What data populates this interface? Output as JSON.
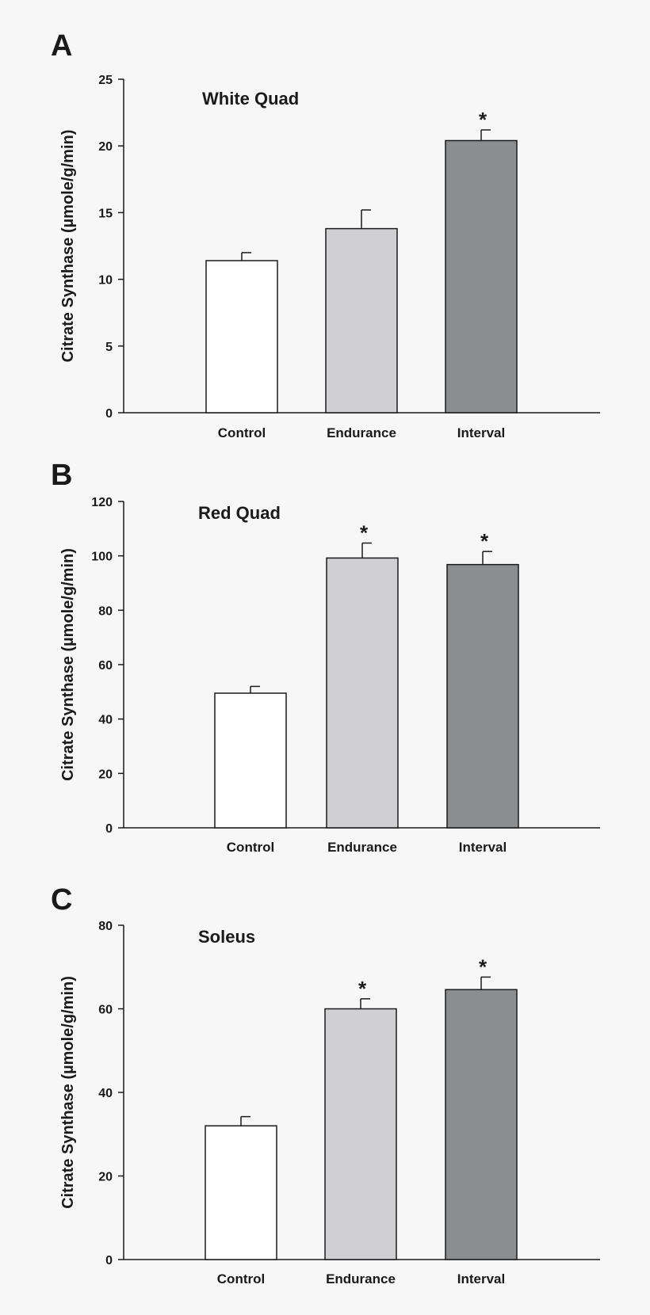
{
  "chart_data": [
    {
      "type": "bar",
      "panel": "A",
      "title": "White Quad",
      "ylabel": "Citrate Synthase (µmole/g/min)",
      "categories": [
        "Control",
        "Endurance",
        "Interval"
      ],
      "values": [
        11.4,
        13.8,
        20.4
      ],
      "errors": [
        0.6,
        1.4,
        0.8
      ],
      "significant": [
        "",
        "",
        "*"
      ],
      "colors": [
        "#ffffff",
        "#d0d0d2",
        "#8c8d8f"
      ],
      "ylim": [
        0,
        25
      ],
      "yticks": [
        0,
        5,
        10,
        15,
        20,
        25
      ],
      "grid": false
    },
    {
      "type": "bar",
      "panel": "B",
      "title": "Red Quad",
      "ylabel": "Citrate Synthase (µmole/g/min)",
      "categories": [
        "Control",
        "Endurance",
        "Interval"
      ],
      "values": [
        49.5,
        99.2,
        96.8
      ],
      "errors": [
        2.5,
        5.5,
        4.8
      ],
      "significant": [
        "",
        "*",
        "*"
      ],
      "colors": [
        "#ffffff",
        "#d0d0d2",
        "#8c8d8f"
      ],
      "ylim": [
        0,
        120
      ],
      "yticks": [
        0,
        20,
        40,
        60,
        80,
        100,
        120
      ],
      "grid": false
    },
    {
      "type": "bar",
      "panel": "C",
      "title": "Soleus",
      "ylabel": "Citrate Synthase (µmole/g/min)",
      "categories": [
        "Control",
        "Endurance",
        "Interval"
      ],
      "values": [
        32.0,
        60.0,
        64.6
      ],
      "errors": [
        2.2,
        2.4,
        3.0
      ],
      "significant": [
        "",
        "*",
        "*"
      ],
      "colors": [
        "#ffffff",
        "#d0d0d2",
        "#8c8d8f"
      ],
      "ylim": [
        0,
        80
      ],
      "yticks": [
        0,
        20,
        40,
        60,
        80
      ],
      "grid": false
    }
  ]
}
